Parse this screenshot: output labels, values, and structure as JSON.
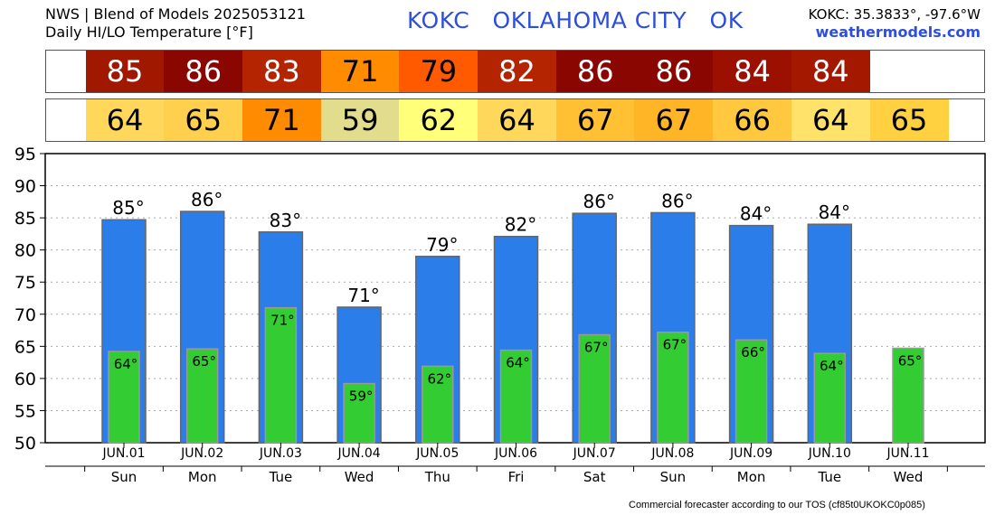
{
  "header": {
    "line1": "NWS | Blend of Models 2025053121",
    "line2": "Daily HI/LO Temperature [°F]",
    "station_code": "KOKC",
    "station_name": "OKLAHOMA CITY",
    "state": "OK",
    "coords": "KOKC: 35.3833°, -97.6°W",
    "site": "weathermodels.com"
  },
  "footer": "Commercial forecaster according to our TOS (cf85t0UKOKC0p085)",
  "colors": {
    "hi_bar": "#2b7de9",
    "lo_bar": "#33cc33",
    "title_blue": "#2e4ee0"
  },
  "hi_strip": {
    "values": [
      "85",
      "86",
      "83",
      "71",
      "79",
      "82",
      "86",
      "86",
      "84",
      "84"
    ],
    "colors": [
      "#a01800",
      "#8a0600",
      "#b42400",
      "#ff8c00",
      "#ff5a00",
      "#b42400",
      "#8a0600",
      "#8a0600",
      "#9b1000",
      "#a41800"
    ],
    "text_colors": [
      "#ffffff",
      "#ffffff",
      "#ffffff",
      "#000000",
      "#000000",
      "#ffffff",
      "#ffffff",
      "#ffffff",
      "#ffffff",
      "#ffffff"
    ]
  },
  "lo_strip": {
    "values": [
      "64",
      "65",
      "71",
      "59",
      "62",
      "64",
      "67",
      "67",
      "66",
      "64",
      "65"
    ],
    "colors": [
      "#ffd75a",
      "#ffcf4e",
      "#ff8c00",
      "#e2dd8c",
      "#ffff7a",
      "#ffd75a",
      "#ffc033",
      "#ffb526",
      "#ffc83e",
      "#ffe26a",
      "#ffd040"
    ]
  },
  "chart_data": {
    "type": "bar",
    "categories": [
      "JUN.01",
      "JUN.02",
      "JUN.03",
      "JUN.04",
      "JUN.05",
      "JUN.06",
      "JUN.07",
      "JUN.08",
      "JUN.09",
      "JUN.10",
      "JUN.11"
    ],
    "weekdays": [
      "Sun",
      "Mon",
      "Tue",
      "Wed",
      "Thu",
      "Fri",
      "Sat",
      "Sun",
      "Mon",
      "Tue",
      "Wed"
    ],
    "series": [
      {
        "values": [
          84.7,
          86.0,
          82.8,
          71.1,
          79.0,
          82.1,
          85.7,
          85.8,
          83.8,
          84.0,
          null
        ],
        "labels": [
          "85°",
          "86°",
          "83°",
          "71°",
          "79°",
          "82°",
          "86°",
          "86°",
          "84°",
          "84°",
          null
        ]
      },
      {
        "values": [
          64.2,
          64.6,
          71.0,
          59.2,
          61.9,
          64.4,
          66.8,
          67.2,
          66.0,
          63.9,
          64.7
        ],
        "labels": [
          "64°",
          "65°",
          "71°",
          "59°",
          "62°",
          "64°",
          "67°",
          "67°",
          "66°",
          "64°",
          "65°"
        ]
      }
    ],
    "ylim": [
      50,
      95
    ],
    "yticks": [
      "50",
      "55",
      "60",
      "65",
      "70",
      "75",
      "80",
      "85",
      "90",
      "95"
    ],
    "grid": true
  }
}
